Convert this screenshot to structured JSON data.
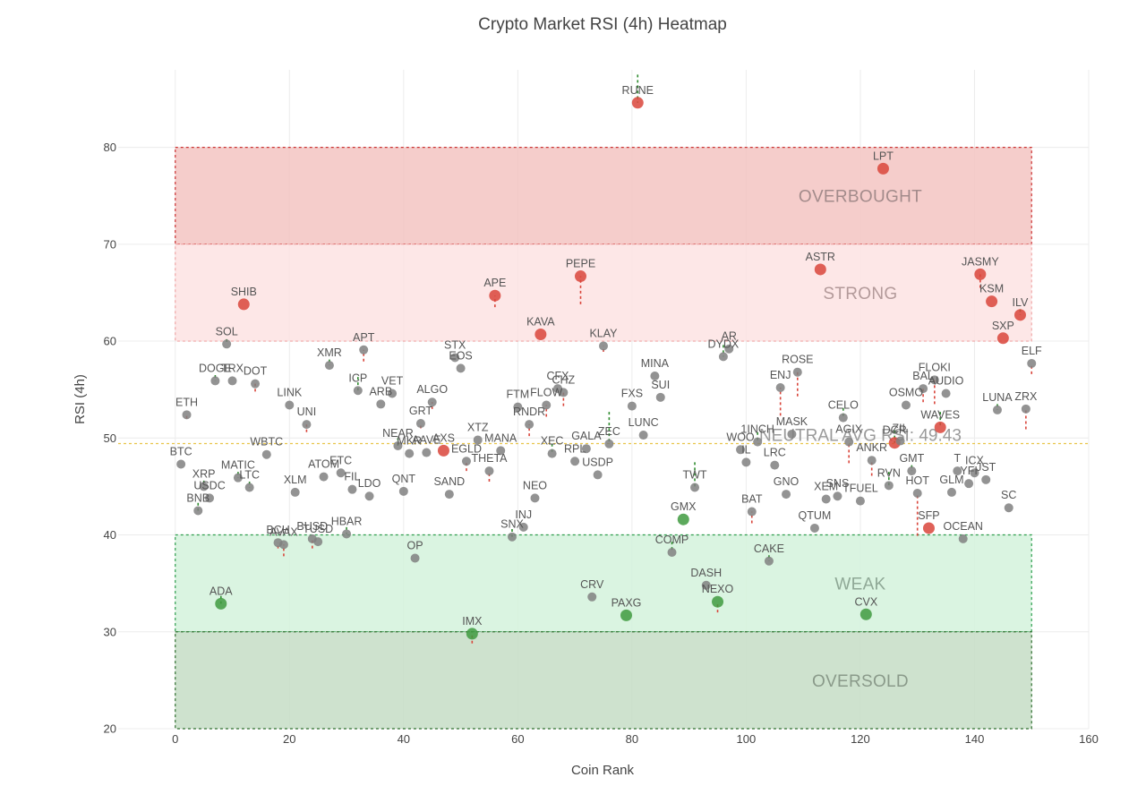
{
  "chart_data": {
    "type": "scatter",
    "title": "Crypto Market RSI (4h) Heatmap",
    "xlabel": "Coin Rank",
    "ylabel": "RSI (4h)",
    "xlim": [
      -10,
      160
    ],
    "ylim": [
      20,
      88
    ],
    "xticks": [
      0,
      20,
      40,
      60,
      80,
      100,
      120,
      140,
      160
    ],
    "yticks": [
      20,
      30,
      40,
      50,
      60,
      70,
      80
    ],
    "grid": true,
    "colors": {
      "overbought_point": "#d9453b",
      "oversold_point": "#3f9a3f",
      "neutral_point": "#808080",
      "overbought_zone": "#f3c4c2",
      "strong_zone": "#fde3e3",
      "weak_zone": "#d3f2dc",
      "oversold_zone": "#c6ddc6",
      "up_change": "#d9453b",
      "down_change": "#2e8b2e"
    },
    "zones": [
      {
        "label": "OVERBOUGHT",
        "from": 70,
        "to": 80,
        "color": "#f3c4c2",
        "border": "#cc3333",
        "text_color": "#a38b8b"
      },
      {
        "label": "STRONG",
        "from": 60,
        "to": 70,
        "color": "#fde3e3",
        "border": "#f0a8a8",
        "text_color": "#b39a9a"
      },
      {
        "label": "WEAK",
        "from": 30,
        "to": 40,
        "color": "#d3f2dc",
        "border": "#2e9e4e",
        "text_color": "#8fa896"
      },
      {
        "label": "OVERSOLD",
        "from": 20,
        "to": 30,
        "color": "#c6ddc6",
        "border": "#2e6e2e",
        "text_color": "#8a9a8a"
      }
    ],
    "average": {
      "label": "NEUTRAL AVG RSI: 49.43",
      "value": 49.43
    },
    "points": [
      {
        "name": "BTC",
        "x": 1,
        "y": 47.3,
        "prev": 47.0
      },
      {
        "name": "ETH",
        "x": 2,
        "y": 52.4,
        "prev": 52.0
      },
      {
        "name": "BNB",
        "x": 4,
        "y": 42.5,
        "prev": 43.3
      },
      {
        "name": "XRP",
        "x": 5,
        "y": 45.0,
        "prev": 45.6
      },
      {
        "name": "USDC",
        "x": 6,
        "y": 43.8,
        "prev": 43.8
      },
      {
        "name": "DOGE",
        "x": 7,
        "y": 55.9,
        "prev": 56.5
      },
      {
        "name": "ADA",
        "x": 8,
        "y": 32.9,
        "prev": 33.7
      },
      {
        "name": "SOL",
        "x": 9,
        "y": 59.7,
        "prev": 60.2
      },
      {
        "name": "TRX",
        "x": 10,
        "y": 55.9,
        "prev": 56.0
      },
      {
        "name": "MATIC",
        "x": 11,
        "y": 45.9,
        "prev": 46.5
      },
      {
        "name": "SHIB",
        "x": 12,
        "y": 63.8,
        "prev": 63.5
      },
      {
        "name": "LTC",
        "x": 13,
        "y": 44.9,
        "prev": 45.5
      },
      {
        "name": "DOT",
        "x": 14,
        "y": 55.6,
        "prev": 54.8
      },
      {
        "name": "WBTC",
        "x": 16,
        "y": 48.3,
        "prev": 48.3
      },
      {
        "name": "BCH",
        "x": 18,
        "y": 39.2,
        "prev": 38.6
      },
      {
        "name": "AVAX",
        "x": 19,
        "y": 39.0,
        "prev": 37.8
      },
      {
        "name": "LINK",
        "x": 20,
        "y": 53.4,
        "prev": 53.4
      },
      {
        "name": "XLM",
        "x": 21,
        "y": 44.4,
        "prev": 44.4
      },
      {
        "name": "UNI",
        "x": 23,
        "y": 51.4,
        "prev": 50.6
      },
      {
        "name": "BUSD",
        "x": 24,
        "y": 39.6,
        "prev": 38.6
      },
      {
        "name": "TUSD",
        "x": 25,
        "y": 39.3,
        "prev": 39.3
      },
      {
        "name": "ATOM",
        "x": 26,
        "y": 46.0,
        "prev": 46.0
      },
      {
        "name": "XMR",
        "x": 27,
        "y": 57.5,
        "prev": 58.1
      },
      {
        "name": "ETC",
        "x": 29,
        "y": 46.4,
        "prev": 46.4
      },
      {
        "name": "HBAR",
        "x": 30,
        "y": 40.1,
        "prev": 40.8
      },
      {
        "name": "FIL",
        "x": 31,
        "y": 44.7,
        "prev": 44.7
      },
      {
        "name": "ICP",
        "x": 32,
        "y": 54.9,
        "prev": 56.3
      },
      {
        "name": "APT",
        "x": 33,
        "y": 59.1,
        "prev": 57.9
      },
      {
        "name": "LDO",
        "x": 34,
        "y": 44.0,
        "prev": 44.0
      },
      {
        "name": "ARB",
        "x": 36,
        "y": 53.5,
        "prev": 53.5
      },
      {
        "name": "VET",
        "x": 38,
        "y": 54.6,
        "prev": 54.6
      },
      {
        "name": "NEAR",
        "x": 39,
        "y": 49.2,
        "prev": 50.0
      },
      {
        "name": "QNT",
        "x": 40,
        "y": 44.5,
        "prev": 44.5
      },
      {
        "name": "MKR",
        "x": 41,
        "y": 48.4,
        "prev": 48.4
      },
      {
        "name": "OP",
        "x": 42,
        "y": 37.6,
        "prev": 37.6
      },
      {
        "name": "GRT",
        "x": 43,
        "y": 51.5,
        "prev": 51.0
      },
      {
        "name": "AAVE",
        "x": 44,
        "y": 48.5,
        "prev": 48.5
      },
      {
        "name": "ALGO",
        "x": 45,
        "y": 53.7,
        "prev": 53.0
      },
      {
        "name": "AXS",
        "x": 47,
        "y": 48.7,
        "prev": 48.7
      },
      {
        "name": "SAND",
        "x": 48,
        "y": 44.2,
        "prev": 44.5
      },
      {
        "name": "STX",
        "x": 49,
        "y": 58.3,
        "prev": 58.3
      },
      {
        "name": "EOS",
        "x": 50,
        "y": 57.2,
        "prev": 57.2
      },
      {
        "name": "EGLD",
        "x": 51,
        "y": 47.6,
        "prev": 46.6
      },
      {
        "name": "IMX",
        "x": 52,
        "y": 29.8,
        "prev": 28.8
      },
      {
        "name": "XTZ",
        "x": 53,
        "y": 49.8,
        "prev": 49.8
      },
      {
        "name": "THETA",
        "x": 55,
        "y": 46.6,
        "prev": 45.5
      },
      {
        "name": "APE",
        "x": 56,
        "y": 64.7,
        "prev": 63.5
      },
      {
        "name": "MANA",
        "x": 57,
        "y": 48.7,
        "prev": 48.7
      },
      {
        "name": "SNX",
        "x": 59,
        "y": 39.8,
        "prev": 40.6
      },
      {
        "name": "FTM",
        "x": 60,
        "y": 53.2,
        "prev": 53.2
      },
      {
        "name": "INJ",
        "x": 61,
        "y": 40.8,
        "prev": 40.8
      },
      {
        "name": "RNDR",
        "x": 62,
        "y": 51.4,
        "prev": 50.2
      },
      {
        "name": "NEO",
        "x": 63,
        "y": 43.8,
        "prev": 43.8
      },
      {
        "name": "KAVA",
        "x": 64,
        "y": 60.7,
        "prev": 60.7
      },
      {
        "name": "FLOW",
        "x": 65,
        "y": 53.4,
        "prev": 52.2
      },
      {
        "name": "XEC",
        "x": 66,
        "y": 48.4,
        "prev": 49.4
      },
      {
        "name": "CFX",
        "x": 67,
        "y": 55.1,
        "prev": 55.1
      },
      {
        "name": "CHZ",
        "x": 68,
        "y": 54.7,
        "prev": 53.3
      },
      {
        "name": "RPL",
        "x": 70,
        "y": 47.6,
        "prev": 47.6
      },
      {
        "name": "PEPE",
        "x": 71,
        "y": 66.7,
        "prev": 63.8
      },
      {
        "name": "GALA",
        "x": 72,
        "y": 48.9,
        "prev": 48.9
      },
      {
        "name": "CRV",
        "x": 73,
        "y": 33.6,
        "prev": 33.6
      },
      {
        "name": "USDP",
        "x": 74,
        "y": 46.2,
        "prev": 46.2
      },
      {
        "name": "KLAY",
        "x": 75,
        "y": 59.5,
        "prev": 58.9
      },
      {
        "name": "ZEC",
        "x": 76,
        "y": 49.4,
        "prev": 52.7
      },
      {
        "name": "PAXG",
        "x": 79,
        "y": 31.7,
        "prev": 31.7
      },
      {
        "name": "FXS",
        "x": 80,
        "y": 53.3,
        "prev": 53.3
      },
      {
        "name": "RUNE",
        "x": 81,
        "y": 84.6,
        "prev": 87.5
      },
      {
        "name": "LUNC",
        "x": 82,
        "y": 50.3,
        "prev": 50.3
      },
      {
        "name": "MINA",
        "x": 84,
        "y": 56.4,
        "prev": 56.4
      },
      {
        "name": "SUI",
        "x": 85,
        "y": 54.2,
        "prev": 54.2
      },
      {
        "name": "COMP",
        "x": 87,
        "y": 38.2,
        "prev": 39.3
      },
      {
        "name": "GMX",
        "x": 89,
        "y": 41.6,
        "prev": 41.6
      },
      {
        "name": "TWT",
        "x": 91,
        "y": 44.9,
        "prev": 47.5
      },
      {
        "name": "DASH",
        "x": 93,
        "y": 34.8,
        "prev": 34.8
      },
      {
        "name": "NEXO",
        "x": 95,
        "y": 33.1,
        "prev": 32.0
      },
      {
        "name": "DYDX",
        "x": 96,
        "y": 58.4,
        "prev": 59.6
      },
      {
        "name": "AR",
        "x": 97,
        "y": 59.2,
        "prev": 59.2
      },
      {
        "name": "WOO",
        "x": 99,
        "y": 48.8,
        "prev": 48.8
      },
      {
        "name": "IL",
        "x": 100,
        "y": 47.5,
        "prev": 47.5
      },
      {
        "name": "BAT",
        "x": 101,
        "y": 42.4,
        "prev": 41.2
      },
      {
        "name": "1INCH",
        "x": 102,
        "y": 49.6,
        "prev": 50.6
      },
      {
        "name": "CAKE",
        "x": 104,
        "y": 37.3,
        "prev": 37.9
      },
      {
        "name": "LRC",
        "x": 105,
        "y": 47.2,
        "prev": 47.2
      },
      {
        "name": "ENJ",
        "x": 106,
        "y": 55.2,
        "prev": 52.3
      },
      {
        "name": "GNO",
        "x": 107,
        "y": 44.2,
        "prev": 44.2
      },
      {
        "name": "MASK",
        "x": 108,
        "y": 50.4,
        "prev": 50.4
      },
      {
        "name": "ROSE",
        "x": 109,
        "y": 56.8,
        "prev": 54.3
      },
      {
        "name": "QTUM",
        "x": 112,
        "y": 40.7,
        "prev": 40.7
      },
      {
        "name": "ASTR",
        "x": 113,
        "y": 67.4,
        "prev": 67.4
      },
      {
        "name": "XEM",
        "x": 114,
        "y": 43.7,
        "prev": 43.7
      },
      {
        "name": "SNS",
        "x": 116,
        "y": 44.0,
        "prev": 44.0
      },
      {
        "name": "CELO",
        "x": 117,
        "y": 52.1,
        "prev": 53.1
      },
      {
        "name": "AGIX",
        "x": 118,
        "y": 49.6,
        "prev": 47.4
      },
      {
        "name": "TFUEL",
        "x": 120,
        "y": 43.5,
        "prev": 43.5
      },
      {
        "name": "CVX",
        "x": 121,
        "y": 31.8,
        "prev": 31.8
      },
      {
        "name": "ANKR",
        "x": 122,
        "y": 47.7,
        "prev": 46.1
      },
      {
        "name": "LPT",
        "x": 124,
        "y": 77.8,
        "prev": 77.8
      },
      {
        "name": "RVN",
        "x": 125,
        "y": 45.1,
        "prev": 46.5
      },
      {
        "name": "DCR",
        "x": 126,
        "y": 49.5,
        "prev": 50.8
      },
      {
        "name": "ZIL",
        "x": 127,
        "y": 49.7,
        "prev": 49.7
      },
      {
        "name": "OSMO",
        "x": 128,
        "y": 53.4,
        "prev": 53.4
      },
      {
        "name": "GMT",
        "x": 129,
        "y": 46.6,
        "prev": 47.2
      },
      {
        "name": "HOT",
        "x": 130,
        "y": 44.3,
        "prev": 39.9
      },
      {
        "name": "BAL",
        "x": 131,
        "y": 55.1,
        "prev": 53.7
      },
      {
        "name": "SFP",
        "x": 132,
        "y": 40.7,
        "prev": 40.7
      },
      {
        "name": "FLOKI",
        "x": 133,
        "y": 56.0,
        "prev": 53.5
      },
      {
        "name": "AUDIO",
        "x": 135,
        "y": 54.6,
        "prev": 54.6
      },
      {
        "name": "WAVES",
        "x": 134,
        "y": 51.1,
        "prev": 52.7
      },
      {
        "name": "GLM",
        "x": 136,
        "y": 44.4,
        "prev": 44.4
      },
      {
        "name": "T",
        "x": 137,
        "y": 46.6,
        "prev": 46.6
      },
      {
        "name": "OCEAN",
        "x": 138,
        "y": 39.6,
        "prev": 39.6
      },
      {
        "name": "YFI",
        "x": 139,
        "y": 45.3,
        "prev": 45.3
      },
      {
        "name": "ICX",
        "x": 140,
        "y": 46.4,
        "prev": 46.4
      },
      {
        "name": "JASMY",
        "x": 141,
        "y": 66.9,
        "prev": 65.5
      },
      {
        "name": "JST",
        "x": 142,
        "y": 45.7,
        "prev": 45.7
      },
      {
        "name": "KSM",
        "x": 143,
        "y": 64.1,
        "prev": 64.1
      },
      {
        "name": "LUNA",
        "x": 144,
        "y": 52.9,
        "prev": 53.5
      },
      {
        "name": "SXP",
        "x": 145,
        "y": 60.3,
        "prev": 60.3
      },
      {
        "name": "SC",
        "x": 146,
        "y": 42.8,
        "prev": 42.8
      },
      {
        "name": "ILV",
        "x": 148,
        "y": 62.7,
        "prev": 63.3
      },
      {
        "name": "ZRX",
        "x": 149,
        "y": 53.0,
        "prev": 50.9
      },
      {
        "name": "ELF",
        "x": 150,
        "y": 57.7,
        "prev": 56.6
      }
    ]
  }
}
